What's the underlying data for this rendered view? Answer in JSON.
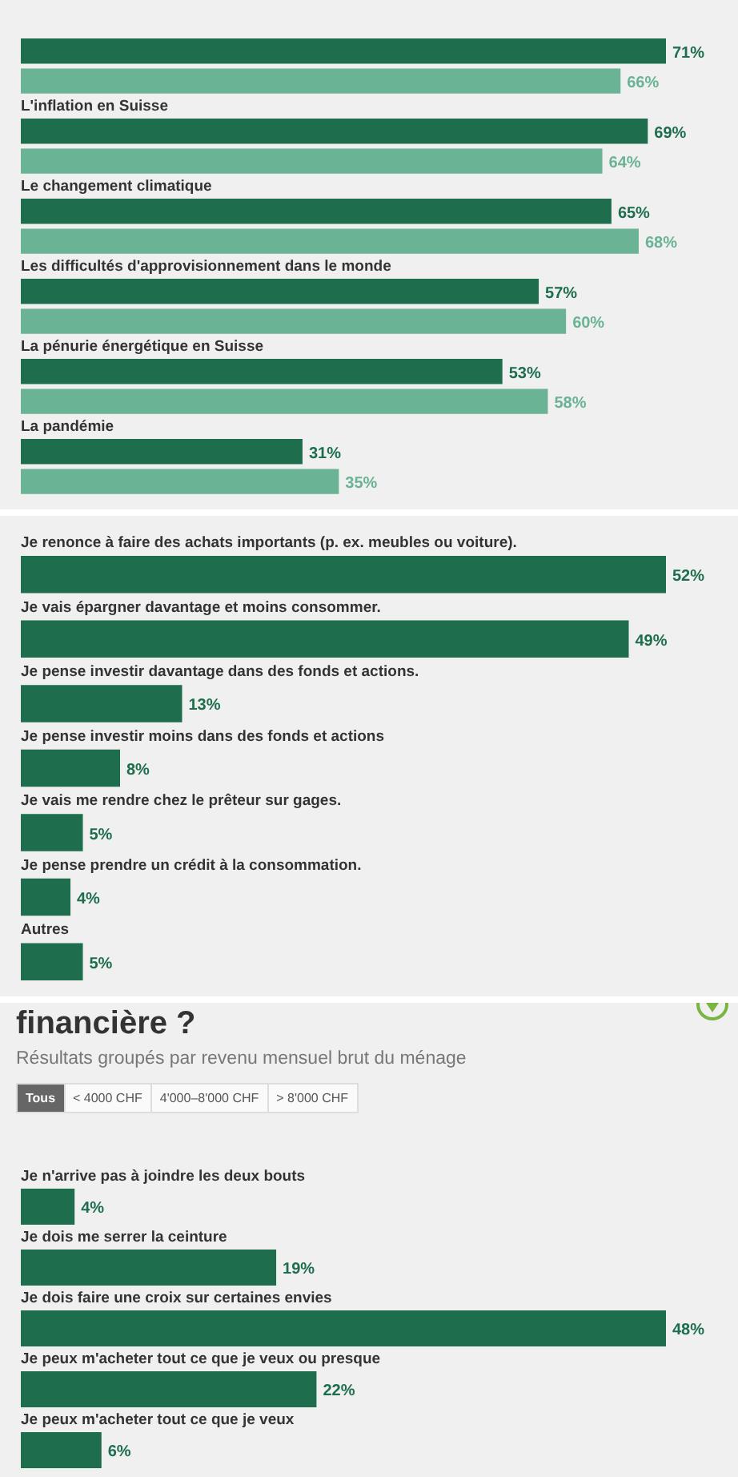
{
  "chart_data": [
    {
      "type": "bar",
      "orientation": "horizontal",
      "tick_labels": "y",
      "categories": [
        null,
        "L'inflation en Suisse",
        "Le changement climatique",
        "Les difficultés d'approvisionnement dans le monde",
        "La pénurie énergétique en Suisse",
        "La pandémie"
      ],
      "series": [
        {
          "color": "#1e6e4e",
          "values": [
            71,
            69,
            65,
            57,
            53,
            31
          ],
          "value_labels": [
            "71%",
            "69%",
            "65%",
            "57%",
            "53%",
            "31%"
          ]
        },
        {
          "color": "#6ab394",
          "values": [
            66,
            64,
            68,
            60,
            58,
            35
          ],
          "value_labels": [
            "66%",
            "64%",
            "68%",
            "60%",
            "58%",
            "35%"
          ]
        }
      ]
    },
    {
      "type": "bar",
      "orientation": "horizontal",
      "tick_labels": "y",
      "categories": [
        "Je renonce à faire des achats importants (p. ex. meubles ou voiture).",
        "Je vais épargner davantage et moins consommer.",
        "Je pense investir davantage dans des fonds et actions.",
        "Je pense investir moins dans des fonds et actions",
        "Je vais me rendre chez le prêteur sur gages.",
        "Je pense prendre un crédit à la consommation.",
        "Autres"
      ],
      "series": [
        {
          "color": "#1e6e4e",
          "values": [
            52,
            49,
            13,
            8,
            5,
            4,
            5
          ],
          "value_labels": [
            "52%",
            "49%",
            "13%",
            "8%",
            "5%",
            "4%",
            "5%"
          ]
        }
      ]
    },
    {
      "type": "bar",
      "orientation": "horizontal",
      "tick_labels": "y",
      "title": "financière ?",
      "subtitle": "Résultats groupés par revenu mensuel brut du ménage",
      "annotations": [
        "Tous",
        "< 4000 CHF",
        "4'000–8'000 CHF",
        "> 8'000 CHF"
      ],
      "categories": [
        "Je n'arrive pas à joindre les deux bouts",
        "Je dois me serrer la ceinture",
        "Je dois faire une croix sur certaines envies",
        "Je peux m'acheter tout ce que je veux ou presque",
        "Je peux m'acheter tout ce que je veux"
      ],
      "series": [
        {
          "color": "#1e6e4e",
          "values": [
            4,
            19,
            48,
            22,
            6
          ],
          "value_labels": [
            "4%",
            "19%",
            "48%",
            "22%",
            "6%"
          ]
        }
      ]
    }
  ]
}
